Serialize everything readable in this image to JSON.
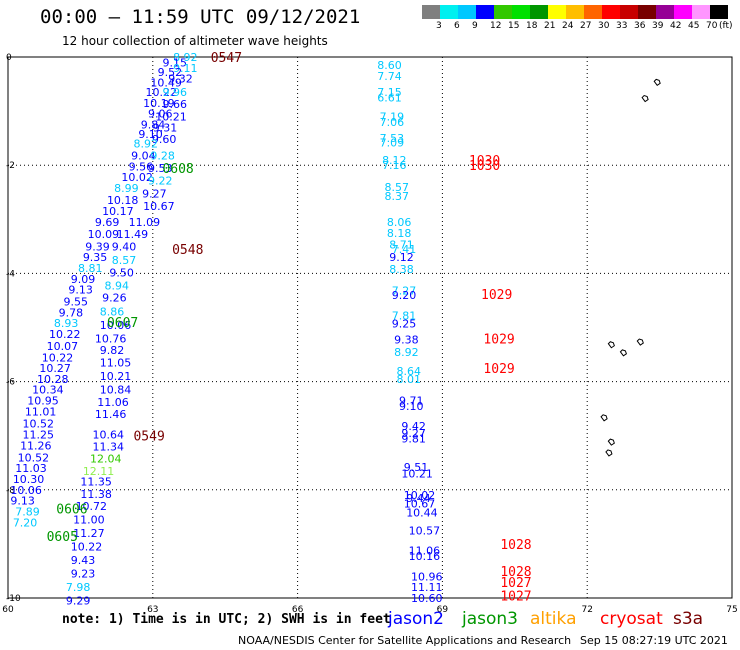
{
  "header": {
    "title": "00:00 – 11:59 UTC 09/12/2021",
    "subtitle": "12 hour collection of altimeter wave heights"
  },
  "colorbar": {
    "colors": [
      "#7f7f7f",
      "#00f0f0",
      "#00c8ff",
      "#0000ff",
      "#32c800",
      "#00e000",
      "#009600",
      "#ffff00",
      "#ffbe00",
      "#ff6400",
      "#ff0000",
      "#c80000",
      "#780000",
      "#960096",
      "#ff00ff",
      "#ff96ff",
      "#000000"
    ],
    "labels": [
      "3",
      "6",
      "9",
      "12",
      "15",
      "18",
      "21",
      "24",
      "27",
      "30",
      "33",
      "36",
      "39",
      "42",
      "45",
      "70"
    ],
    "unit": "(ft)"
  },
  "axes": {
    "lon_ticks": [
      "60",
      "63",
      "66",
      "69",
      "72",
      "75"
    ],
    "lat_ticks": [
      "0",
      "-2",
      "-4",
      "-6",
      "-8",
      "-10"
    ],
    "lon_range": [
      60,
      75
    ],
    "lat_range": [
      0,
      -10
    ]
  },
  "footer": {
    "note": "note: 1) Time is in UTC; 2) SWH is in feet",
    "credit": "NOAA/NESDIS Center for Satellite Applications and Research",
    "generated": "Sep 15 08:27:19 UTC 2021"
  },
  "satellites": [
    {
      "name": "jason2",
      "color": "#0000ff"
    },
    {
      "name": "jason3",
      "color": "#009600"
    },
    {
      "name": "altika",
      "color": "#ffa000"
    },
    {
      "name": "cryosat",
      "color": "#ff0000"
    },
    {
      "name": "s3a",
      "color": "#780000"
    }
  ],
  "chart_data": {
    "type": "scatter",
    "title": "00:00 – 11:59 UTC 09/12/2021",
    "subtitle": "12 hour collection of altimeter wave heights",
    "xlabel": "",
    "ylabel": "",
    "xlim": [
      60,
      75
    ],
    "ylim": [
      -10,
      0
    ],
    "grid": true,
    "time_labels": [
      {
        "text": "0547",
        "lon": 64.2,
        "lat": 0.0,
        "color": "#780000"
      },
      {
        "text": "0608",
        "lon": 63.2,
        "lat": -2.05,
        "color": "#009600"
      },
      {
        "text": "0548",
        "lon": 63.4,
        "lat": -3.55,
        "color": "#780000"
      },
      {
        "text": "0607",
        "lon": 62.05,
        "lat": -4.9,
        "color": "#009600"
      },
      {
        "text": "0549",
        "lon": 62.6,
        "lat": -7.0,
        "color": "#780000"
      },
      {
        "text": "0606",
        "lon": 61.0,
        "lat": -8.35,
        "color": "#009600"
      },
      {
        "text": "0605",
        "lon": 60.8,
        "lat": -8.85,
        "color": "#009600"
      },
      {
        "text": "1030",
        "lon": 69.55,
        "lat": -1.9,
        "color": "#ff0000"
      },
      {
        "text": "1030",
        "lon": 69.55,
        "lat": -2.0,
        "color": "#ff0000"
      },
      {
        "text": "1029",
        "lon": 69.8,
        "lat": -4.38,
        "color": "#ff0000"
      },
      {
        "text": "1029",
        "lon": 69.85,
        "lat": -5.2,
        "color": "#ff0000"
      },
      {
        "text": "1029",
        "lon": 69.85,
        "lat": -5.75,
        "color": "#ff0000"
      },
      {
        "text": "1028",
        "lon": 70.2,
        "lat": -9.0,
        "color": "#ff0000"
      },
      {
        "text": "1028",
        "lon": 70.2,
        "lat": -9.5,
        "color": "#ff0000"
      },
      {
        "text": "1027",
        "lon": 70.2,
        "lat": -9.7,
        "color": "#ff0000"
      },
      {
        "text": "1027",
        "lon": 70.2,
        "lat": -9.95,
        "color": "#ff0000"
      }
    ],
    "points": [
      {
        "v": "8.92",
        "lon": 63.42,
        "lat": 0.0,
        "color": "#00c8ff"
      },
      {
        "v": "9.15",
        "lon": 63.2,
        "lat": -0.1,
        "color": "#0000ff"
      },
      {
        "v": "9.11",
        "lon": 63.42,
        "lat": -0.2,
        "color": "#00c8ff"
      },
      {
        "v": "9.52",
        "lon": 63.1,
        "lat": -0.28,
        "color": "#0000ff"
      },
      {
        "v": "9.32",
        "lon": 63.32,
        "lat": -0.4,
        "color": "#0000ff"
      },
      {
        "v": "10.49",
        "lon": 62.95,
        "lat": -0.47,
        "color": "#0000ff"
      },
      {
        "v": "10.22",
        "lon": 62.85,
        "lat": -0.65,
        "color": "#0000ff"
      },
      {
        "v": "9.96",
        "lon": 63.2,
        "lat": -0.65,
        "color": "#00c8ff"
      },
      {
        "v": "10.19",
        "lon": 62.8,
        "lat": -0.85,
        "color": "#0000ff"
      },
      {
        "v": "9.66",
        "lon": 63.2,
        "lat": -0.87,
        "color": "#0000ff"
      },
      {
        "v": "9.06",
        "lon": 62.9,
        "lat": -1.04,
        "color": "#0000ff"
      },
      {
        "v": "10.21",
        "lon": 63.05,
        "lat": -1.1,
        "color": "#0000ff"
      },
      {
        "v": "9.84",
        "lon": 62.75,
        "lat": -1.25,
        "color": "#0000ff"
      },
      {
        "v": "9.31",
        "lon": 63.0,
        "lat": -1.3,
        "color": "#0000ff"
      },
      {
        "v": "9.10",
        "lon": 62.7,
        "lat": -1.42,
        "color": "#0000ff"
      },
      {
        "v": "9.60",
        "lon": 62.98,
        "lat": -1.52,
        "color": "#0000ff"
      },
      {
        "v": "8.92",
        "lon": 62.6,
        "lat": -1.6,
        "color": "#00c8ff"
      },
      {
        "v": "9.04",
        "lon": 62.55,
        "lat": -1.82,
        "color": "#0000ff"
      },
      {
        "v": "9.28",
        "lon": 62.95,
        "lat": -1.82,
        "color": "#00c8ff"
      },
      {
        "v": "9.56",
        "lon": 62.5,
        "lat": -2.02,
        "color": "#0000ff"
      },
      {
        "v": "9.53",
        "lon": 62.9,
        "lat": -2.05,
        "color": "#0000ff"
      },
      {
        "v": "10.02",
        "lon": 62.35,
        "lat": -2.22,
        "color": "#0000ff"
      },
      {
        "v": "9.22",
        "lon": 62.9,
        "lat": -2.28,
        "color": "#00c8ff"
      },
      {
        "v": "8.99",
        "lon": 62.2,
        "lat": -2.42,
        "color": "#00c8ff"
      },
      {
        "v": "9.27",
        "lon": 62.78,
        "lat": -2.52,
        "color": "#0000ff"
      },
      {
        "v": "10.18",
        "lon": 62.05,
        "lat": -2.64,
        "color": "#0000ff"
      },
      {
        "v": "10.67",
        "lon": 62.8,
        "lat": -2.75,
        "color": "#0000ff"
      },
      {
        "v": "10.17",
        "lon": 61.95,
        "lat": -2.85,
        "color": "#0000ff"
      },
      {
        "v": "9.69",
        "lon": 61.8,
        "lat": -3.05,
        "color": "#0000ff"
      },
      {
        "v": "11.09",
        "lon": 62.5,
        "lat": -3.05,
        "color": "#0000ff"
      },
      {
        "v": "10.09",
        "lon": 61.65,
        "lat": -3.27,
        "color": "#0000ff"
      },
      {
        "v": "11.49",
        "lon": 62.25,
        "lat": -3.27,
        "color": "#0000ff"
      },
      {
        "v": "9.39",
        "lon": 61.6,
        "lat": -3.5,
        "color": "#0000ff"
      },
      {
        "v": "9.40",
        "lon": 62.15,
        "lat": -3.5,
        "color": "#0000ff"
      },
      {
        "v": "9.35",
        "lon": 61.55,
        "lat": -3.7,
        "color": "#0000ff"
      },
      {
        "v": "8.57",
        "lon": 62.15,
        "lat": -3.75,
        "color": "#00c8ff"
      },
      {
        "v": "8.81",
        "lon": 61.45,
        "lat": -3.9,
        "color": "#00c8ff"
      },
      {
        "v": "9.50",
        "lon": 62.1,
        "lat": -3.98,
        "color": "#0000ff"
      },
      {
        "v": "9.09",
        "lon": 61.3,
        "lat": -4.1,
        "color": "#0000ff"
      },
      {
        "v": "8.94",
        "lon": 62.0,
        "lat": -4.22,
        "color": "#00c8ff"
      },
      {
        "v": "9.13",
        "lon": 61.25,
        "lat": -4.3,
        "color": "#0000ff"
      },
      {
        "v": "9.26",
        "lon": 61.95,
        "lat": -4.45,
        "color": "#0000ff"
      },
      {
        "v": "9.55",
        "lon": 61.15,
        "lat": -4.52,
        "color": "#0000ff"
      },
      {
        "v": "9.78",
        "lon": 61.05,
        "lat": -4.72,
        "color": "#0000ff"
      },
      {
        "v": "8.86",
        "lon": 61.9,
        "lat": -4.7,
        "color": "#00c8ff"
      },
      {
        "v": "8.93",
        "lon": 60.95,
        "lat": -4.92,
        "color": "#00c8ff"
      },
      {
        "v": "10.06",
        "lon": 61.9,
        "lat": -4.95,
        "color": "#0000ff"
      },
      {
        "v": "10.22",
        "lon": 60.85,
        "lat": -5.12,
        "color": "#0000ff"
      },
      {
        "v": "10.76",
        "lon": 61.8,
        "lat": -5.2,
        "color": "#0000ff"
      },
      {
        "v": "10.07",
        "lon": 60.8,
        "lat": -5.34,
        "color": "#0000ff"
      },
      {
        "v": "9.82",
        "lon": 61.9,
        "lat": -5.42,
        "color": "#0000ff"
      },
      {
        "v": "10.22",
        "lon": 60.7,
        "lat": -5.55,
        "color": "#0000ff"
      },
      {
        "v": "10.27",
        "lon": 60.65,
        "lat": -5.75,
        "color": "#0000ff"
      },
      {
        "v": "11.05",
        "lon": 61.9,
        "lat": -5.65,
        "color": "#0000ff"
      },
      {
        "v": "10.28",
        "lon": 60.6,
        "lat": -5.95,
        "color": "#0000ff"
      },
      {
        "v": "10.21",
        "lon": 61.9,
        "lat": -5.9,
        "color": "#0000ff"
      },
      {
        "v": "10.34",
        "lon": 60.5,
        "lat": -6.15,
        "color": "#0000ff"
      },
      {
        "v": "10.84",
        "lon": 61.9,
        "lat": -6.15,
        "color": "#0000ff"
      },
      {
        "v": "10.95",
        "lon": 60.4,
        "lat": -6.35,
        "color": "#0000ff"
      },
      {
        "v": "11.06",
        "lon": 61.85,
        "lat": -6.38,
        "color": "#0000ff"
      },
      {
        "v": "11.01",
        "lon": 60.35,
        "lat": -6.55,
        "color": "#0000ff"
      },
      {
        "v": "11.46",
        "lon": 61.8,
        "lat": -6.6,
        "color": "#0000ff"
      },
      {
        "v": "10.52",
        "lon": 60.3,
        "lat": -6.77,
        "color": "#0000ff"
      },
      {
        "v": "11.25",
        "lon": 60.3,
        "lat": -6.98,
        "color": "#0000ff"
      },
      {
        "v": "10.64",
        "lon": 61.75,
        "lat": -6.98,
        "color": "#0000ff"
      },
      {
        "v": "11.26",
        "lon": 60.25,
        "lat": -7.18,
        "color": "#0000ff"
      },
      {
        "v": "11.34",
        "lon": 61.75,
        "lat": -7.2,
        "color": "#0000ff"
      },
      {
        "v": "10.52",
        "lon": 60.2,
        "lat": -7.4,
        "color": "#0000ff"
      },
      {
        "v": "12.04",
        "lon": 61.7,
        "lat": -7.42,
        "color": "#32c800"
      },
      {
        "v": "11.03",
        "lon": 60.15,
        "lat": -7.6,
        "color": "#0000ff"
      },
      {
        "v": "12.11",
        "lon": 61.55,
        "lat": -7.65,
        "color": "#90ee50"
      },
      {
        "v": "10.30",
        "lon": 60.1,
        "lat": -7.8,
        "color": "#0000ff"
      },
      {
        "v": "11.35",
        "lon": 61.5,
        "lat": -7.85,
        "color": "#0000ff"
      },
      {
        "v": "10.06",
        "lon": 60.05,
        "lat": -8.0,
        "color": "#0000ff"
      },
      {
        "v": "11.38",
        "lon": 61.5,
        "lat": -8.08,
        "color": "#0000ff"
      },
      {
        "v": "9.13",
        "lon": 60.05,
        "lat": -8.2,
        "color": "#0000ff"
      },
      {
        "v": "10.72",
        "lon": 61.4,
        "lat": -8.3,
        "color": "#0000ff"
      },
      {
        "v": "7.89",
        "lon": 60.15,
        "lat": -8.4,
        "color": "#00c8ff"
      },
      {
        "v": "11.00",
        "lon": 61.35,
        "lat": -8.55,
        "color": "#0000ff"
      },
      {
        "v": "7.20",
        "lon": 60.1,
        "lat": -8.6,
        "color": "#00c8ff"
      },
      {
        "v": "11.27",
        "lon": 61.35,
        "lat": -8.8,
        "color": "#0000ff"
      },
      {
        "v": "10.22",
        "lon": 61.3,
        "lat": -9.05,
        "color": "#0000ff"
      },
      {
        "v": "9.43",
        "lon": 61.3,
        "lat": -9.3,
        "color": "#0000ff"
      },
      {
        "v": "9.23",
        "lon": 61.3,
        "lat": -9.55,
        "color": "#0000ff"
      },
      {
        "v": "7.98",
        "lon": 61.2,
        "lat": -9.8,
        "color": "#00c8ff"
      },
      {
        "v": "9.29",
        "lon": 61.2,
        "lat": -10.05,
        "color": "#0000ff"
      },
      {
        "v": "8.60",
        "lon": 67.65,
        "lat": -0.15,
        "color": "#00c8ff"
      },
      {
        "v": "7.74",
        "lon": 67.65,
        "lat": -0.35,
        "color": "#00c8ff"
      },
      {
        "v": "7.15",
        "lon": 67.65,
        "lat": -0.65,
        "color": "#00c8ff"
      },
      {
        "v": "6.61",
        "lon": 67.65,
        "lat": -0.75,
        "color": "#00c8ff"
      },
      {
        "v": "7.19",
        "lon": 67.7,
        "lat": -1.1,
        "color": "#00c8ff"
      },
      {
        "v": "7.06",
        "lon": 67.7,
        "lat": -1.2,
        "color": "#00c8ff"
      },
      {
        "v": "7.53",
        "lon": 67.7,
        "lat": -1.5,
        "color": "#00c8ff"
      },
      {
        "v": "7.09",
        "lon": 67.7,
        "lat": -1.58,
        "color": "#00c8ff"
      },
      {
        "v": "8.12",
        "lon": 67.75,
        "lat": -1.9,
        "color": "#00c8ff"
      },
      {
        "v": "7.16",
        "lon": 67.75,
        "lat": -2.0,
        "color": "#00c8ff"
      },
      {
        "v": "8.57",
        "lon": 67.8,
        "lat": -2.4,
        "color": "#00c8ff"
      },
      {
        "v": "8.37",
        "lon": 67.8,
        "lat": -2.57,
        "color": "#00c8ff"
      },
      {
        "v": "8.06",
        "lon": 67.85,
        "lat": -3.05,
        "color": "#00c8ff"
      },
      {
        "v": "8.18",
        "lon": 67.85,
        "lat": -3.25,
        "color": "#00c8ff"
      },
      {
        "v": "8.71",
        "lon": 67.9,
        "lat": -3.47,
        "color": "#00c8ff"
      },
      {
        "v": "7.41",
        "lon": 67.95,
        "lat": -3.55,
        "color": "#00c8ff"
      },
      {
        "v": "9.12",
        "lon": 67.9,
        "lat": -3.7,
        "color": "#0000ff"
      },
      {
        "v": "8.38",
        "lon": 67.9,
        "lat": -3.92,
        "color": "#00c8ff"
      },
      {
        "v": "7.27",
        "lon": 67.95,
        "lat": -4.32,
        "color": "#00c8ff"
      },
      {
        "v": "9.20",
        "lon": 67.95,
        "lat": -4.4,
        "color": "#0000ff"
      },
      {
        "v": "7.81",
        "lon": 67.95,
        "lat": -4.78,
        "color": "#00c8ff"
      },
      {
        "v": "9.25",
        "lon": 67.95,
        "lat": -4.93,
        "color": "#0000ff"
      },
      {
        "v": "9.38",
        "lon": 68.0,
        "lat": -5.22,
        "color": "#0000ff"
      },
      {
        "v": "8.92",
        "lon": 68.0,
        "lat": -5.45,
        "color": "#00c8ff"
      },
      {
        "v": "8.64",
        "lon": 68.05,
        "lat": -5.8,
        "color": "#00c8ff"
      },
      {
        "v": "8.01",
        "lon": 68.05,
        "lat": -5.95,
        "color": "#00c8ff"
      },
      {
        "v": "9.71",
        "lon": 68.1,
        "lat": -6.35,
        "color": "#0000ff"
      },
      {
        "v": "9.10",
        "lon": 68.1,
        "lat": -6.45,
        "color": "#0000ff"
      },
      {
        "v": "9.42",
        "lon": 68.15,
        "lat": -6.82,
        "color": "#0000ff"
      },
      {
        "v": "9.27",
        "lon": 68.15,
        "lat": -6.95,
        "color": "#0000ff"
      },
      {
        "v": "9.81",
        "lon": 68.15,
        "lat": -7.05,
        "color": "#0000ff"
      },
      {
        "v": "9.51",
        "lon": 68.2,
        "lat": -7.58,
        "color": "#0000ff"
      },
      {
        "v": "10.21",
        "lon": 68.15,
        "lat": -7.7,
        "color": "#0000ff"
      },
      {
        "v": "10.02",
        "lon": 68.2,
        "lat": -8.1,
        "color": "#0000ff"
      },
      {
        "v": "9.44",
        "lon": 68.25,
        "lat": -8.15,
        "color": "#0000ff"
      },
      {
        "v": "10.67",
        "lon": 68.2,
        "lat": -8.25,
        "color": "#0000ff"
      },
      {
        "v": "10.44",
        "lon": 68.25,
        "lat": -8.42,
        "color": "#0000ff"
      },
      {
        "v": "10.57",
        "lon": 68.3,
        "lat": -8.75,
        "color": "#0000ff"
      },
      {
        "v": "11.06",
        "lon": 68.3,
        "lat": -9.12,
        "color": "#0000ff"
      },
      {
        "v": "10.16",
        "lon": 68.3,
        "lat": -9.22,
        "color": "#0000ff"
      },
      {
        "v": "10.96",
        "lon": 68.35,
        "lat": -9.6,
        "color": "#0000ff"
      },
      {
        "v": "11.11",
        "lon": 68.35,
        "lat": -9.8,
        "color": "#0000ff"
      },
      {
        "v": "10.60",
        "lon": 68.35,
        "lat": -10.0,
        "color": "#0000ff"
      }
    ],
    "islands": [
      {
        "lon": 73.45,
        "lat": -0.45
      },
      {
        "lon": 73.2,
        "lat": -0.75
      },
      {
        "lon": 72.5,
        "lat": -5.3
      },
      {
        "lon": 72.75,
        "lat": -5.45
      },
      {
        "lon": 73.1,
        "lat": -5.25
      },
      {
        "lon": 72.35,
        "lat": -6.65
      },
      {
        "lon": 72.45,
        "lat": -7.3
      },
      {
        "lon": 72.5,
        "lat": -7.1
      }
    ]
  }
}
